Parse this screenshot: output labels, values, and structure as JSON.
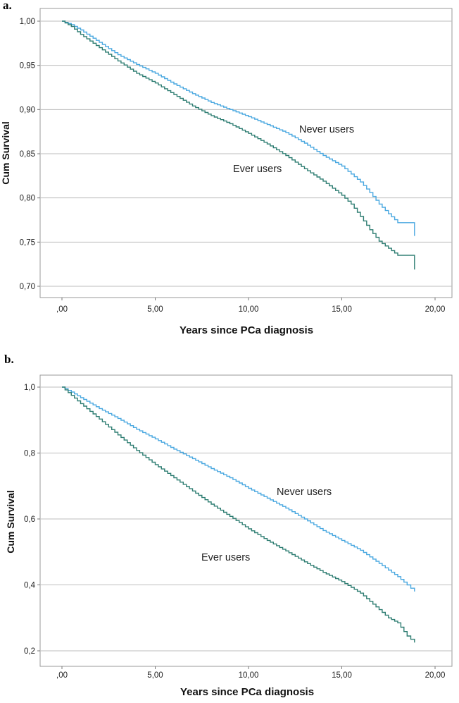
{
  "chart_data": [
    {
      "type": "line",
      "panel_label": "a.",
      "xlabel": "Years since PCa diagnosis",
      "ylabel": "Cum Survival",
      "xlim": [
        0,
        20
      ],
      "ylim": [
        0.7,
        1.0
      ],
      "x_ticks": [
        ",00",
        "5,00",
        "10,00",
        "15,00",
        "20,00"
      ],
      "y_ticks": [
        "0,70",
        "0,75",
        "0,80",
        "0,85",
        "0,90",
        "0,95",
        "1,00"
      ],
      "grid": true,
      "series": [
        {
          "name": "Never users",
          "color": "#4aa8e0",
          "x": [
            0,
            0.5,
            1,
            2,
            3,
            4,
            5,
            6,
            7,
            8,
            9,
            10,
            11,
            12,
            13,
            14,
            15,
            15.5,
            16,
            16.5,
            17,
            17.5,
            18,
            18.9,
            18.9
          ],
          "y": [
            1.0,
            0.996,
            0.99,
            0.976,
            0.962,
            0.951,
            0.941,
            0.929,
            0.918,
            0.908,
            0.9,
            0.892,
            0.883,
            0.874,
            0.862,
            0.848,
            0.836,
            0.827,
            0.818,
            0.806,
            0.793,
            0.782,
            0.772,
            0.772,
            0.757
          ]
        },
        {
          "name": "Ever users",
          "color": "#2e7d72",
          "x": [
            0,
            0.5,
            1,
            2,
            3,
            4,
            5,
            6,
            7,
            8,
            9,
            10,
            11,
            12,
            13,
            14,
            15,
            15.5,
            16,
            16.5,
            17,
            17.5,
            18,
            18.9,
            18.9
          ],
          "y": [
            1.0,
            0.994,
            0.985,
            0.97,
            0.955,
            0.941,
            0.93,
            0.917,
            0.904,
            0.893,
            0.884,
            0.873,
            0.861,
            0.848,
            0.833,
            0.819,
            0.803,
            0.793,
            0.779,
            0.764,
            0.751,
            0.743,
            0.735,
            0.735,
            0.719
          ]
        }
      ],
      "annotations": [
        "Never users",
        "Ever users"
      ]
    },
    {
      "type": "line",
      "panel_label": "b.",
      "xlabel": "Years since PCa diagnosis",
      "ylabel": "Cum Survival",
      "xlim": [
        0,
        20
      ],
      "ylim": [
        0.2,
        1.0
      ],
      "x_ticks": [
        ",00",
        "5,00",
        "10,00",
        "15,00",
        "20,00"
      ],
      "y_ticks": [
        "0,2",
        "0,4",
        "0,6",
        "0,8",
        "1,0"
      ],
      "grid": true,
      "series": [
        {
          "name": "Never users",
          "color": "#4aa8e0",
          "x": [
            0,
            0.5,
            1,
            2,
            3,
            4,
            5,
            6,
            7,
            8,
            9,
            10,
            11,
            12,
            13,
            14,
            15,
            16,
            17,
            17.5,
            18,
            18.5,
            18.9
          ],
          "y": [
            1.0,
            0.985,
            0.968,
            0.935,
            0.905,
            0.872,
            0.843,
            0.812,
            0.783,
            0.753,
            0.725,
            0.693,
            0.663,
            0.633,
            0.6,
            0.565,
            0.535,
            0.505,
            0.465,
            0.445,
            0.425,
            0.4,
            0.38
          ]
        },
        {
          "name": "Ever users",
          "color": "#2e7d72",
          "x": [
            0,
            0.5,
            1,
            2,
            3,
            4,
            5,
            6,
            7,
            8,
            9,
            10,
            11,
            12,
            13,
            14,
            15,
            16,
            17,
            17.5,
            18,
            18.5,
            18.9
          ],
          "y": [
            1.0,
            0.975,
            0.95,
            0.903,
            0.855,
            0.808,
            0.765,
            0.725,
            0.685,
            0.645,
            0.608,
            0.57,
            0.535,
            0.503,
            0.47,
            0.438,
            0.41,
            0.375,
            0.325,
            0.3,
            0.285,
            0.245,
            0.225
          ]
        }
      ],
      "annotations": [
        "Never users",
        "Ever users"
      ]
    }
  ]
}
